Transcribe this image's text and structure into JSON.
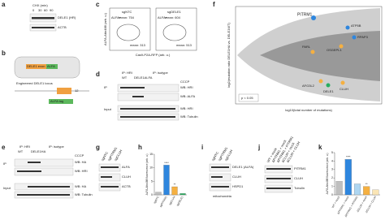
{
  "a": {
    "label": "a",
    "header": "CHX (min)",
    "lanes": [
      "0",
      "30",
      "60",
      "90"
    ],
    "rows": [
      "DELE1 (HR)",
      "ACTB"
    ]
  },
  "b": {
    "label": "b",
    "parts": [
      "DELE1 exon",
      "ALFA"
    ],
    "caption": "Engineered DELE1 locus",
    "exon": "12",
    "tag": "ALFA tag"
  },
  "c": {
    "label": "c",
    "plots": [
      {
        "title": "sgNTC",
        "gate": "ALFA+",
        "mean_top": "mean: 754",
        "mean_bottom": "mean: 313"
      },
      {
        "title": "sgDELE1",
        "gate": "ALFA+",
        "mean_top": "mean: 604",
        "mean_bottom": "mean: 513"
      }
    ],
    "xlabel": "Cas9-P2A-RFP (arb. u.)",
    "ylabel": "ALFA-Atto488 (arb. u.)"
  },
  "d": {
    "label": "d",
    "ip": [
      "IP: HRI",
      "IP: isotype"
    ],
    "lanes": [
      "WT",
      "DELE1ALFA"
    ],
    "cccp": "CCCP",
    "rows": [
      "WB: HRI",
      "WB: ALFA",
      "WB: HRI",
      "WB: Tubulin"
    ],
    "sections": [
      "IP",
      "Input"
    ]
  },
  "e": {
    "label": "e",
    "ip": [
      "IP: HRI",
      "IP: isotype"
    ],
    "lanes": [
      "WT",
      "DELE1HA"
    ],
    "cccp": "CCCP",
    "rows": [
      "WB: HA",
      "WB: HRI",
      "WB: HA",
      "WB: Tubulin"
    ],
    "sections": [
      "IP",
      "Input"
    ]
  },
  "f": {
    "label": "f",
    "xlabel": "log10(total number of mutations)",
    "ylabel": "log2(mutation ratio DELE1HA vs. DELE1WT)",
    "genes": [
      "PITRM1",
      "ATP5B",
      "RPAP3",
      "OSGEPL1",
      "PARL",
      "AFG3L2",
      "DELE1",
      "CLUH"
    ],
    "legend": "p < 0.05"
  },
  "g": {
    "label": "g",
    "lanes": [
      "sgNTC",
      "sgPITRM1",
      "sgCLUH"
    ],
    "rows": [
      "ALFA",
      "CLUH",
      "ACTB"
    ]
  },
  "h": {
    "label": "h"
  },
  "i": {
    "label": "i",
    "lanes": [
      "sgNTC",
      "sgPITRM1",
      "sgCLUH"
    ],
    "rows": [
      "DELE1 (ALFA)",
      "CLUH",
      "HSPD1"
    ],
    "caption": "mitochondria"
  },
  "j": {
    "label": "j",
    "lanes": [
      "WT + mock",
      "ΔPITRM1 + mock",
      "ΔPITRM1 + PITRM1",
      "ΔCLUH + mock",
      "ΔCLUH + CLUH"
    ],
    "rows": [
      "PITRM1",
      "CLUH",
      "Tubulin"
    ]
  },
  "k": {
    "label": "k"
  },
  "chart_data": [
    {
      "type": "bar",
      "ylabel": "ALFA-Atto488 fluorescence (arb. u.)",
      "categories": [
        "sgNTC",
        "sgPITRM1",
        "sgCLUH",
        "sgDELE1"
      ],
      "values": [
        1,
        11,
        3,
        0.5
      ],
      "colors": [
        "#bfbfbf",
        "#2e86de",
        "#f5b041",
        "#27ae60"
      ],
      "ylim": [
        0,
        15
      ],
      "yticks": [
        0,
        5,
        10,
        15
      ],
      "stars": [
        "",
        "****",
        "**",
        ""
      ]
    },
    {
      "type": "bar",
      "ylabel": "ALFA-Atto488 fluorescence (arb. u.)",
      "categories": [
        "WT + mock",
        "ΔPITRM1 + mock",
        "ΔPITRM1 + PITRM1",
        "ΔCLUH + mock",
        "ΔCLUH + CLUH"
      ],
      "values": [
        1.6,
        4.2,
        1.3,
        1,
        0.6
      ],
      "colors": [
        "#bfbfbf",
        "#2e86de",
        "#aed6f1",
        "#f5b041",
        "#fae5b5"
      ],
      "ylim": [
        0,
        5
      ],
      "yticks": [
        0,
        1,
        2,
        3,
        4,
        5
      ],
      "stars": [
        "",
        "****",
        "",
        "**",
        ""
      ]
    }
  ]
}
